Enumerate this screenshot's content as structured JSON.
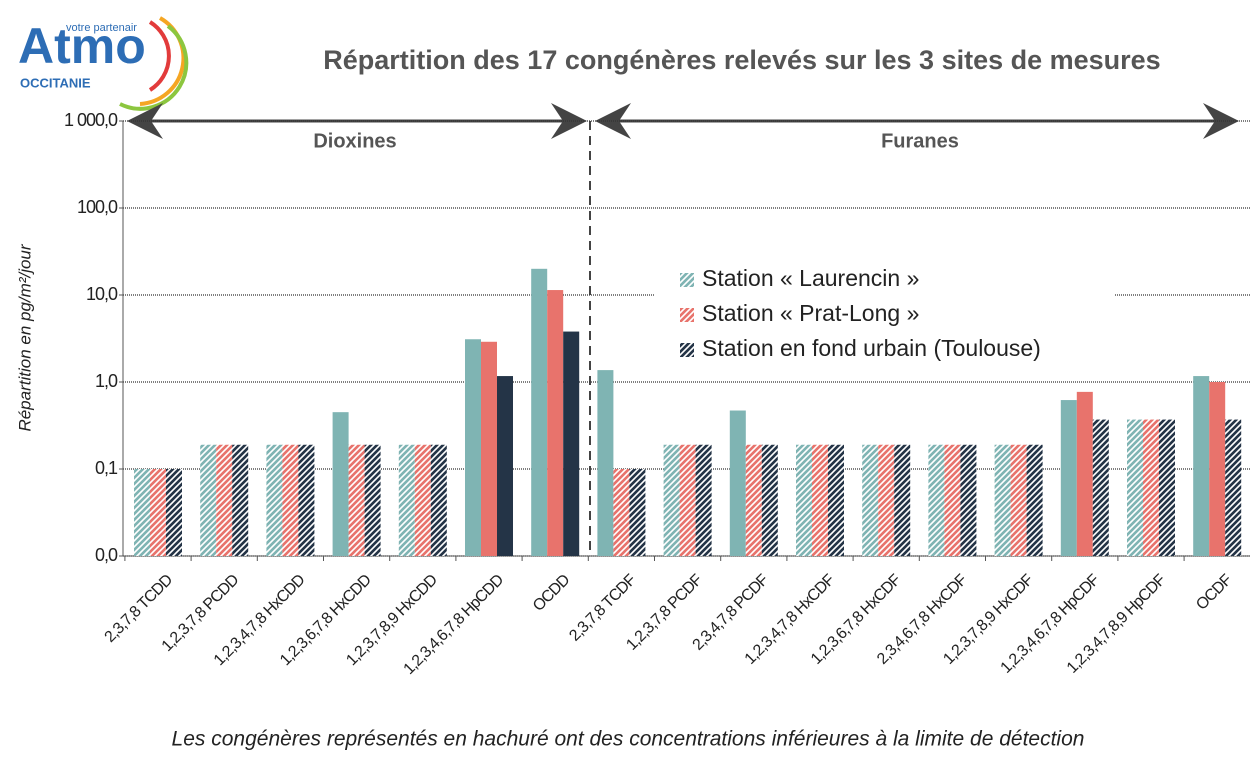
{
  "logo": {
    "name": "Atmo",
    "tagline": "votre partenair",
    "region": "OCCITANIE"
  },
  "chart_data": {
    "type": "bar",
    "title": "Répartition des 17 congénères relevés sur les 3 sites de mesures",
    "y_label": "Répartition en pg/m²/jour",
    "footnote": "Les congénères représentés en hachuré ont des concentrations inférieures à la limite de détection",
    "annotations": [
      "Dioxines",
      "Furanes"
    ],
    "categories": [
      "2,3,7,8 TCDD",
      "1,2,3,7,8 PCDD",
      "1,2,3,4,7,8 HxCDD",
      "1,2,3,6,7,8 HxCDD",
      "1,2,3,7,8,9 HxCDD",
      "1,2,3,4,6,7,8 HpCDD",
      "OCDD",
      "2,3,7,8 TCDF",
      "1,2,3,7,8 PCDF",
      "2,3,4,7,8 PCDF",
      "1,2,3,4,7,8 HxCDF",
      "1,2,3,6,7,8 HxCDF",
      "2,3,4,6,7,8 HxCDF",
      "1,2,3,7,8,9 HxCDF",
      "1,2,3,4,6,7,8 HpCDF",
      "1,2,3,4,7,8,9 HpCDF",
      "OCDF"
    ],
    "series": [
      {
        "name": "Station « Laurencin »",
        "color": "#7fb4b3",
        "values": [
          0.1,
          0.19,
          0.19,
          0.45,
          0.19,
          3.1,
          20,
          1.37,
          0.19,
          0.47,
          0.19,
          0.19,
          0.19,
          0.19,
          0.62,
          0.37,
          1.17
        ],
        "hatched": [
          true,
          true,
          true,
          false,
          true,
          false,
          false,
          false,
          true,
          false,
          true,
          true,
          true,
          true,
          false,
          true,
          false
        ]
      },
      {
        "name": "Station « Prat-Long »",
        "color": "#e8736c",
        "values": [
          0.1,
          0.19,
          0.19,
          0.19,
          0.19,
          2.9,
          11.4,
          0.1,
          0.19,
          0.19,
          0.19,
          0.19,
          0.19,
          0.19,
          0.77,
          0.37,
          1.0
        ],
        "hatched": [
          true,
          true,
          true,
          true,
          true,
          false,
          false,
          true,
          true,
          true,
          true,
          true,
          true,
          true,
          false,
          true,
          false
        ]
      },
      {
        "name": "Station en fond urbain (Toulouse)",
        "color": "#243447",
        "values": [
          0.1,
          0.19,
          0.19,
          0.19,
          0.19,
          1.17,
          3.8,
          0.1,
          0.19,
          0.19,
          0.19,
          0.19,
          0.19,
          0.19,
          0.37,
          0.37,
          0.37
        ],
        "hatched": [
          true,
          true,
          true,
          true,
          true,
          false,
          false,
          true,
          true,
          true,
          true,
          true,
          true,
          true,
          true,
          true,
          true
        ]
      }
    ],
    "log_scale": true,
    "ylim": [
      0.01,
      1000
    ],
    "yticks": [
      {
        "value": 0.01,
        "label": "0,0"
      },
      {
        "value": 0.1,
        "label": "0,1"
      },
      {
        "value": 1,
        "label": "1,0"
      },
      {
        "value": 10,
        "label": "10,0"
      },
      {
        "value": 100,
        "label": "100,0"
      },
      {
        "value": 1000,
        "label": "1 000,0"
      }
    ],
    "grid": true
  }
}
